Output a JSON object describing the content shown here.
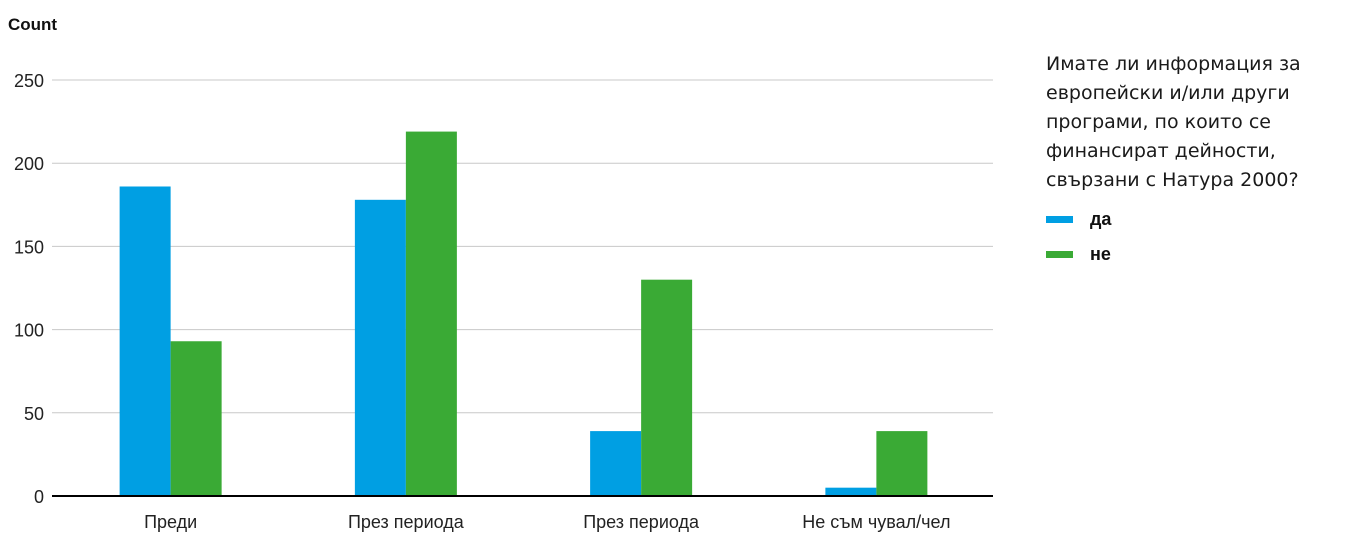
{
  "chart_data": {
    "type": "bar",
    "ylabel": "Count",
    "xlabel": "",
    "categories": [
      "Преди",
      "През периода",
      "През периода",
      "Не съм чувал/чел"
    ],
    "series": [
      {
        "name": "да",
        "color": "#009fe3",
        "values": [
          186,
          178,
          39,
          5
        ]
      },
      {
        "name": "не",
        "color": "#3aaa35",
        "values": [
          93,
          219,
          130,
          39
        ]
      }
    ],
    "ylim": [
      0,
      250
    ],
    "yticks": [
      0,
      50,
      100,
      150,
      200,
      250
    ],
    "grid": true,
    "legend": {
      "title": "Имате ли информация за европейски и/или други програми, по които се финансират дейности, свързани с Натура 2000?",
      "placement": "right"
    }
  }
}
